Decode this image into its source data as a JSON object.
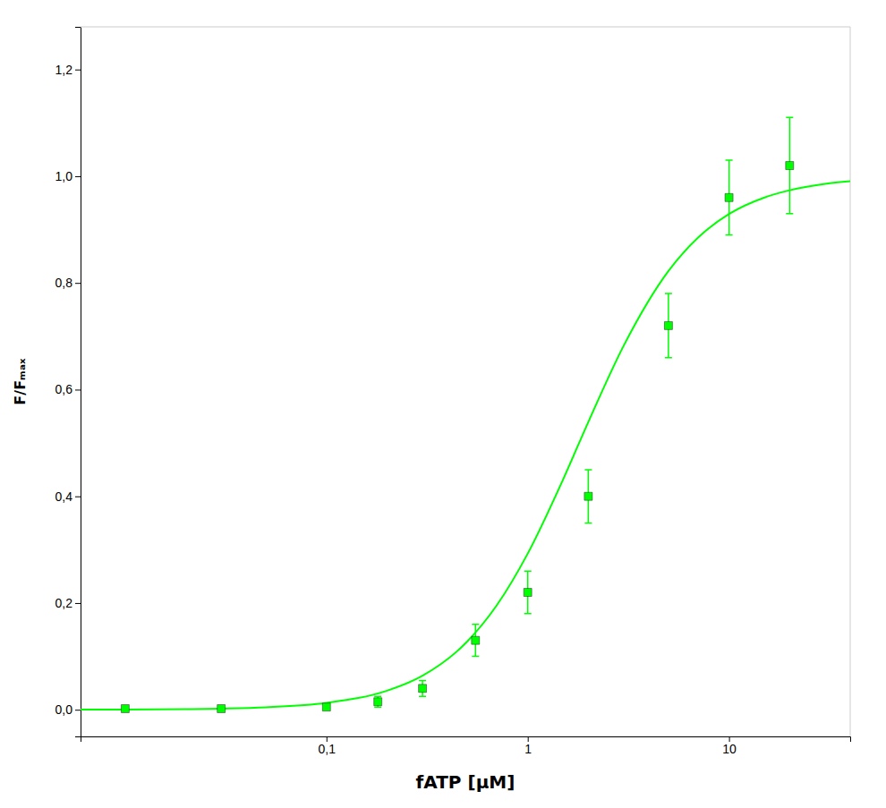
{
  "chart_data": {
    "type": "scatter",
    "xlabel": "fATP [μM]",
    "ylabel": "F/Fₘₐₓ",
    "log": "x",
    "grid": false,
    "xlim": [
      0.006,
      40
    ],
    "ylim": [
      -0.05,
      1.28
    ],
    "xticks": [
      {
        "value": 0.1,
        "label": "0,1"
      },
      1,
      10
    ],
    "yticks": [
      {
        "value": 0.0,
        "label": "0,0"
      },
      {
        "value": 0.2,
        "label": "0,2"
      },
      {
        "value": 0.4,
        "label": "0,4"
      },
      {
        "value": 0.6,
        "label": "0,6"
      },
      {
        "value": 0.8,
        "label": "0,8"
      },
      {
        "value": 1.0,
        "label": "1,0"
      },
      {
        "value": 1.2,
        "label": "1,2"
      }
    ],
    "series": [
      {
        "type": "line",
        "color": "#00ff00",
        "x": [
          0.006,
          0.01,
          0.02,
          0.03,
          0.05,
          0.1,
          0.2,
          0.3,
          0.5,
          0.7,
          1,
          1.5,
          2,
          3,
          5,
          7,
          10,
          15,
          20,
          30,
          40
        ],
        "values": [
          0.0002,
          0.0004,
          0.0012,
          0.0021,
          0.0046,
          0.0129,
          0.0357,
          0.0637,
          0.1277,
          0.1952,
          0.2928,
          0.4321,
          0.5394,
          0.6827,
          0.8224,
          0.8846,
          0.9291,
          0.9601,
          0.9737,
          0.9855,
          0.9905
        ]
      },
      {
        "type": "scatter",
        "marker": "square",
        "color": "#00ff00",
        "x": [
          0.01,
          0.03,
          0.1,
          0.18,
          0.3,
          0.55,
          1.0,
          2.0,
          5.0,
          10.0,
          20.0
        ],
        "values": [
          0.002,
          0.002,
          0.005,
          0.015,
          0.04,
          0.13,
          0.22,
          0.4,
          0.72,
          0.96,
          1.02
        ],
        "errors": [
          0.002,
          0.002,
          0.004,
          0.01,
          0.015,
          0.03,
          0.04,
          0.05,
          0.06,
          0.07,
          0.09
        ]
      }
    ]
  }
}
